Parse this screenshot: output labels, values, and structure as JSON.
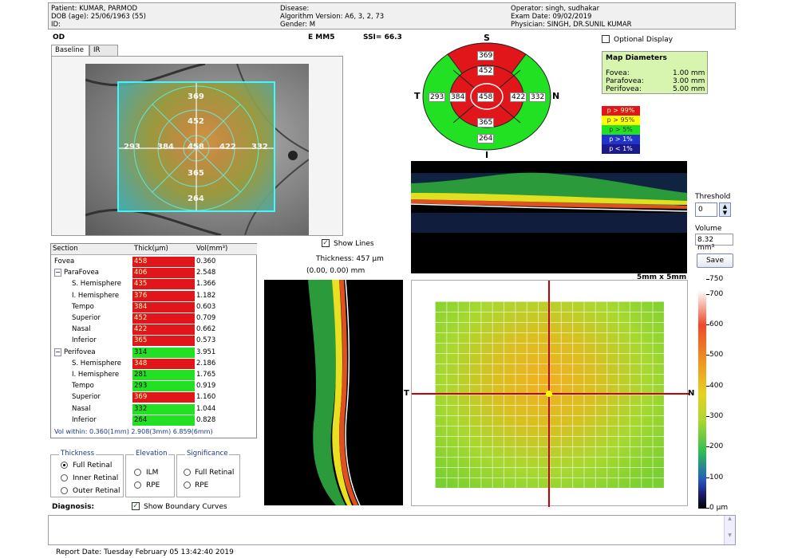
{
  "header": {
    "patient": "Patient: KUMAR, PARMOD",
    "dob": "DOB (age): 25/06/1963 (55)",
    "id": "ID:",
    "disease": "Disease:",
    "algorithm": "Algorithm Version: A6, 3, 2, 73",
    "gender": "Gender: M",
    "operator": "Operator: singh, sudhakar",
    "exam_date": "Exam Date: 09/02/2019",
    "physician": "Physician: SINGH, DR.SUNIL KUMAR"
  },
  "eye": "OD",
  "scan_type": "E MM5",
  "ssi": "SSI= 66.3",
  "tabs": [
    "Baseline",
    "IR"
  ],
  "fundus_values": {
    "superior_outer": "369",
    "superior_inner": "452",
    "temporal_outer": "293",
    "temporal_inner": "384",
    "center": "458",
    "nasal_inner": "422",
    "nasal_outer": "332",
    "inferior_inner": "365",
    "inferior_outer": "264"
  },
  "etdrs": {
    "s": "S",
    "t": "T",
    "n": "N",
    "i": "I",
    "superior_outer": "369",
    "superior_inner": "452",
    "temporal_outer": "293",
    "temporal_inner": "384",
    "center": "458",
    "nasal_inner": "422",
    "nasal_outer": "332",
    "inferior_inner": "365",
    "inferior_outer": "264"
  },
  "optional_display": "Optional Display",
  "map_diameters": {
    "title": "Map Diameters",
    "fovea": "Fovea:",
    "fovea_val": "1.00 mm",
    "parafovea": "Parafovea:",
    "parafovea_val": "3.00 mm",
    "perifovea": "Perifovea:",
    "perifovea_val": "5.00 mm"
  },
  "significance_legend": [
    "p > 99%",
    "p > 95%",
    "p > 5%",
    "p > 1%",
    "p < 1%"
  ],
  "table": {
    "headers": [
      "Section",
      "Thick(µm)",
      "Vol(mm³)"
    ],
    "rows": [
      {
        "section": "Fovea",
        "thick": "458",
        "vol": "0.360",
        "status": "red"
      },
      {
        "section": "ParaFovea",
        "thick": "406",
        "vol": "2.548",
        "status": "red"
      },
      {
        "section": "S. Hemisphere",
        "thick": "435",
        "vol": "1.366",
        "status": "red"
      },
      {
        "section": "I. Hemisphere",
        "thick": "376",
        "vol": "1.182",
        "status": "red"
      },
      {
        "section": "Tempo",
        "thick": "384",
        "vol": "0.603",
        "status": "red"
      },
      {
        "section": "Superior",
        "thick": "452",
        "vol": "0.709",
        "status": "red"
      },
      {
        "section": "Nasal",
        "thick": "422",
        "vol": "0.662",
        "status": "red"
      },
      {
        "section": "Inferior",
        "thick": "365",
        "vol": "0.573",
        "status": "red"
      },
      {
        "section": "Perifovea",
        "thick": "314",
        "vol": "3.951",
        "status": "green"
      },
      {
        "section": "S. Hemisphere",
        "thick": "348",
        "vol": "2.186",
        "status": "red"
      },
      {
        "section": "I. Hemisphere",
        "thick": "281",
        "vol": "1.765",
        "status": "green"
      },
      {
        "section": "Tempo",
        "thick": "293",
        "vol": "0.919",
        "status": "green"
      },
      {
        "section": "Superior",
        "thick": "369",
        "vol": "1.160",
        "status": "red"
      },
      {
        "section": "Nasal",
        "thick": "332",
        "vol": "1.044",
        "status": "green"
      },
      {
        "section": "Inferior",
        "thick": "264",
        "vol": "0.828",
        "status": "green"
      }
    ],
    "footer": "Vol within: 0.360(1mm) 2.908(3mm) 6.859(6mm)"
  },
  "show_lines": "Show Lines",
  "thickness_readout": "Thickness: 457 µm",
  "coord_readout": "(0.00, 0.00) mm",
  "threshold_label": "Threshold",
  "threshold_value": "0",
  "volume_label": "Volume",
  "volume_value": "8.32 mm³",
  "save_label": "Save",
  "map_size": "5mm x 5mm",
  "map_axes": {
    "t": "T",
    "n": "N"
  },
  "colorbar_ticks": [
    "750",
    "700",
    "600",
    "500",
    "400",
    "300",
    "200",
    "100",
    "0 µm"
  ],
  "thickness_group": {
    "legend": "Thickness",
    "options": [
      "Full Retinal",
      "Inner Retinal",
      "Outer Retinal"
    ]
  },
  "elevation_group": {
    "legend": "Elevation",
    "options": [
      "ILM",
      "RPE"
    ]
  },
  "significance_group": {
    "legend": "Significance",
    "options": [
      "Full Retinal",
      "RPE"
    ]
  },
  "diagnosis_label": "Diagnosis:",
  "show_boundary": "Show Boundary Curves",
  "report_date": "Report Date: Tuesday February 05 13:42:40 2019",
  "colors": {
    "red": "#e0161b",
    "green": "#22e022",
    "yellow": "#ffff00",
    "blue": "#2233cc",
    "navy": "#1a1a8a",
    "cyan_frame": "#44ffff"
  }
}
